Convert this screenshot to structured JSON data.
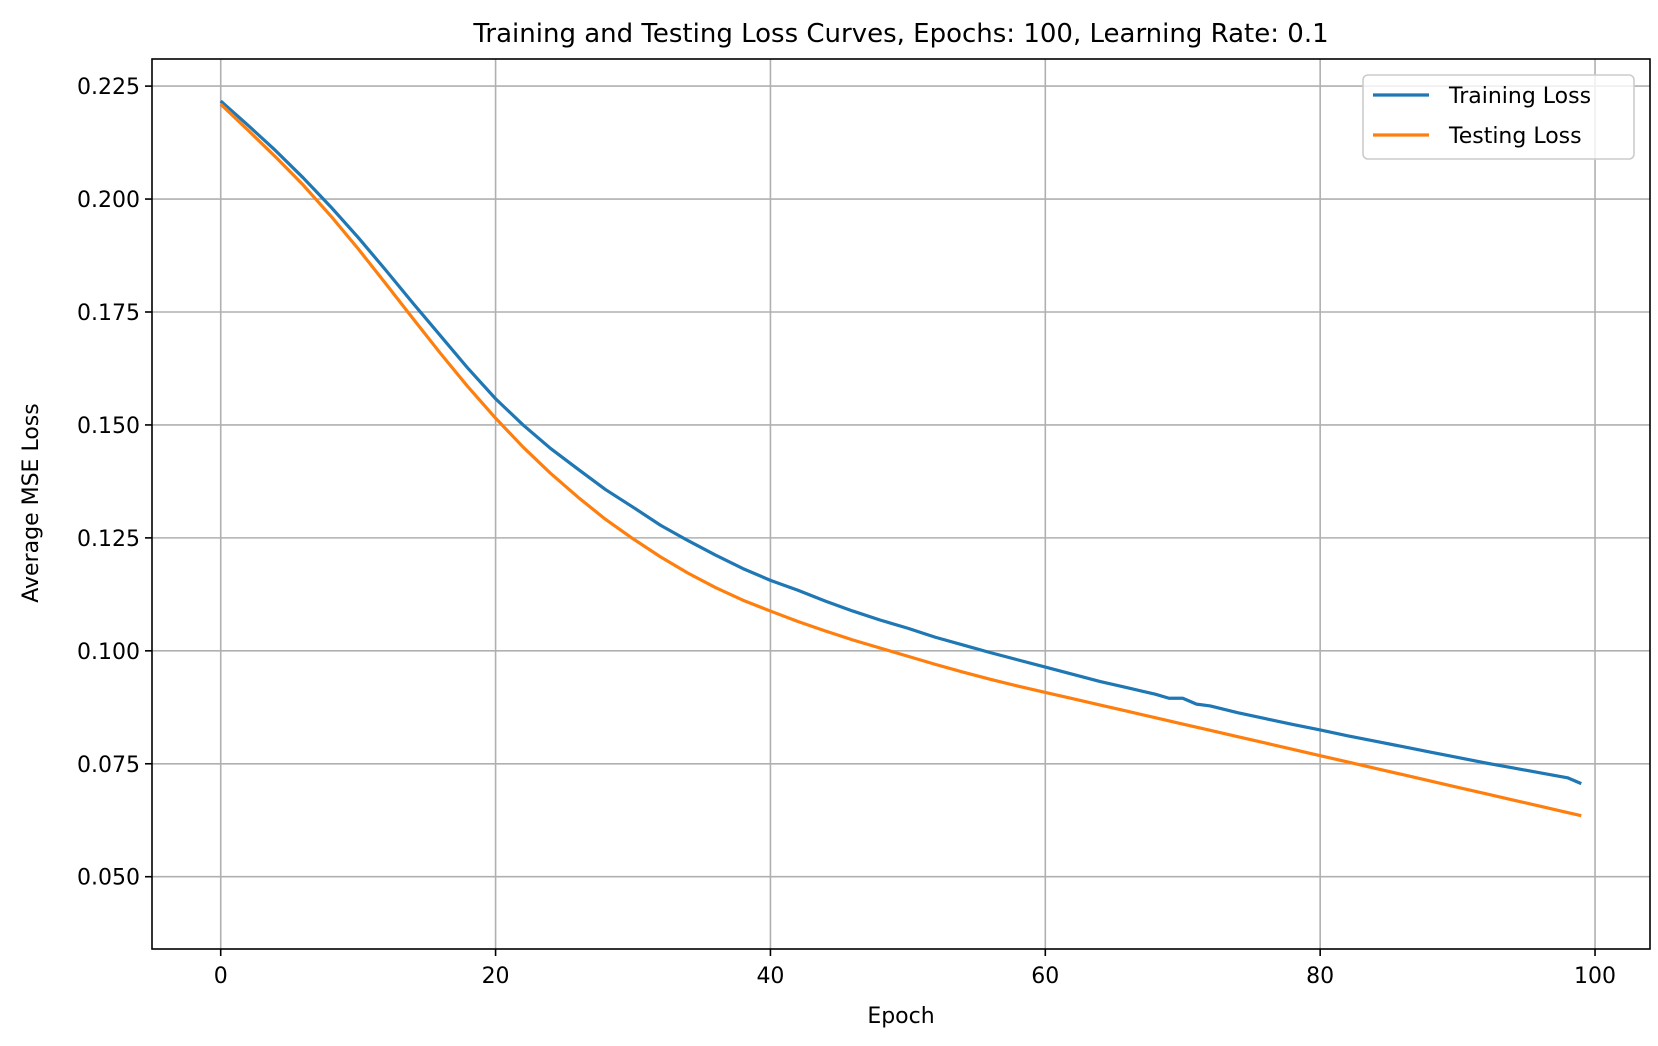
{
  "chart_data": {
    "type": "line",
    "title": "Training and Testing Loss Curves, Epochs: 100, Learning Rate: 0.1",
    "xlabel": "Epoch",
    "ylabel": "Average MSE Loss",
    "xlim": [
      -5,
      104
    ],
    "ylim": [
      0.034,
      0.231
    ],
    "xticks": [
      0,
      20,
      40,
      60,
      80,
      100
    ],
    "yticks": [
      0.05,
      0.075,
      0.1,
      0.125,
      0.15,
      0.175,
      0.2,
      0.225
    ],
    "xtick_labels": [
      "0",
      "20",
      "40",
      "60",
      "80",
      "100"
    ],
    "ytick_labels": [
      "0.050",
      "0.075",
      "0.100",
      "0.125",
      "0.150",
      "0.175",
      "0.200",
      "0.225"
    ],
    "grid": true,
    "legend_position": "top-right",
    "series": [
      {
        "name": "Training Loss",
        "color": "#1f77b4",
        "x": [
          0,
          2,
          4,
          6,
          7,
          8,
          10,
          12,
          14,
          16,
          18,
          20,
          22,
          24,
          26,
          28,
          30,
          32,
          34,
          36,
          38,
          40,
          42,
          44,
          46,
          48,
          50,
          52,
          54,
          56,
          58,
          60,
          62,
          64,
          66,
          68,
          69,
          70,
          71,
          72,
          74,
          76,
          78,
          80,
          82,
          84,
          86,
          88,
          90,
          92,
          94,
          96,
          98,
          99
        ],
        "y": [
          0.2217,
          0.2163,
          0.2107,
          0.2047,
          0.2015,
          0.1983,
          0.1915,
          0.1843,
          0.1769,
          0.1697,
          0.1625,
          0.1558,
          0.15,
          0.1448,
          0.1402,
          0.1357,
          0.1318,
          0.1278,
          0.1244,
          0.1212,
          0.1182,
          0.1156,
          0.1134,
          0.111,
          0.1088,
          0.1068,
          0.105,
          0.103,
          0.1013,
          0.0996,
          0.098,
          0.0964,
          0.0948,
          0.0932,
          0.0918,
          0.0904,
          0.0895,
          0.0895,
          0.0882,
          0.0878,
          0.0863,
          0.085,
          0.0837,
          0.0825,
          0.0812,
          0.08,
          0.0788,
          0.0776,
          0.0764,
          0.0752,
          0.0741,
          0.073,
          0.0719,
          0.0706
        ]
      },
      {
        "name": "Testing Loss",
        "color": "#ff7f0e",
        "x": [
          0,
          2,
          4,
          6,
          8,
          10,
          12,
          14,
          16,
          18,
          20,
          22,
          24,
          26,
          28,
          30,
          32,
          34,
          36,
          38,
          40,
          42,
          44,
          46,
          48,
          50,
          52,
          54,
          56,
          58,
          60,
          62,
          64,
          66,
          68,
          70,
          72,
          74,
          76,
          78,
          80,
          82,
          84,
          86,
          88,
          90,
          92,
          94,
          96,
          98,
          99
        ],
        "y": [
          0.221,
          0.2152,
          0.2093,
          0.2031,
          0.1963,
          0.189,
          0.1813,
          0.1735,
          0.1658,
          0.1584,
          0.1515,
          0.1451,
          0.1393,
          0.134,
          0.1291,
          0.1248,
          0.1208,
          0.1172,
          0.114,
          0.1112,
          0.1088,
          0.1065,
          0.1044,
          0.1024,
          0.1006,
          0.0988,
          0.097,
          0.0953,
          0.0937,
          0.0922,
          0.0908,
          0.0894,
          0.088,
          0.0866,
          0.0852,
          0.0838,
          0.0824,
          0.081,
          0.0796,
          0.0782,
          0.0768,
          0.0754,
          0.074,
          0.0726,
          0.0712,
          0.0698,
          0.0684,
          0.067,
          0.0656,
          0.0642,
          0.0635
        ]
      }
    ]
  }
}
